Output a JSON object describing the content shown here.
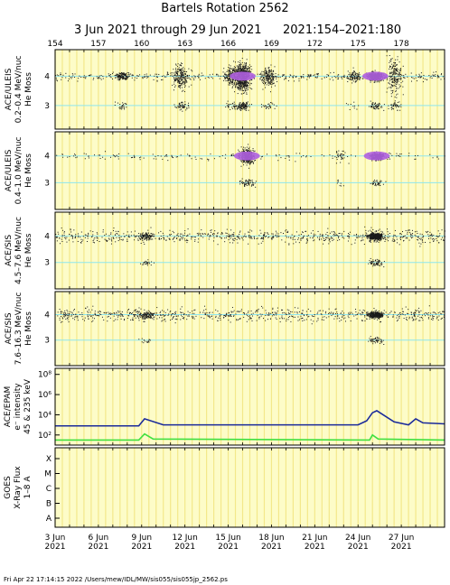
{
  "title": "Bartels Rotation 2562",
  "subtitle_dates": "3 Jun 2021 through 29 Jun 2021",
  "subtitle_doy": "2021:154–2021:180",
  "doy_ticks": [
    "154",
    "157",
    "160",
    "163",
    "166",
    "169",
    "172",
    "175",
    "178"
  ],
  "date_ticks": [
    {
      "day": "3 Jun",
      "year": "2021"
    },
    {
      "day": "6 Jun",
      "year": "2021"
    },
    {
      "day": "9 Jun",
      "year": "2021"
    },
    {
      "day": "12 Jun",
      "year": "2021"
    },
    {
      "day": "15 Jun",
      "year": "2021"
    },
    {
      "day": "18 Jun",
      "year": "2021"
    },
    {
      "day": "21 Jun",
      "year": "2021"
    },
    {
      "day": "24 Jun",
      "year": "2021"
    },
    {
      "day": "27 Jun",
      "year": "2021"
    }
  ],
  "footer": "Fri Apr 22 17:14:15 2022    /Users/mew/IDL/MW/sis055/sis055jp_2562.ps",
  "colors": {
    "panel_bg": "#fdfcc8",
    "stripe": "#f3e88a",
    "cyan_line": "#8ee6ee",
    "dots": "#1a1a1a",
    "dense": "#b060e0",
    "electron_high": "#1a2a9a",
    "electron_low": "#40e040"
  },
  "chart_data": [
    {
      "type": "scatter",
      "instrument": "ACE/ULEIS",
      "energy": "0.2–0.4 MeV/nuc",
      "ylabel": "He Moss",
      "yticks": [
        "3",
        "4"
      ],
      "ylim": [
        2.2,
        4.9
      ],
      "x_range_doy": [
        154,
        181
      ],
      "activity": [
        {
          "doy": 158.6,
          "spread": 0.25,
          "n": 160
        },
        {
          "doy": 162.7,
          "spread": 0.9,
          "n": 260
        },
        {
          "doy": 166.3,
          "spread": 0.7,
          "n": 260
        },
        {
          "doy": 167.0,
          "spread": 0.9,
          "n": 700,
          "dense": true
        },
        {
          "doy": 168.8,
          "spread": 0.7,
          "n": 200
        },
        {
          "doy": 174.6,
          "spread": 0.4,
          "n": 100
        },
        {
          "doy": 176.2,
          "spread": 0.3,
          "n": 420,
          "dense": true
        },
        {
          "doy": 177.5,
          "spread": 1.3,
          "n": 220
        }
      ]
    },
    {
      "type": "scatter",
      "instrument": "ACE/ULEIS",
      "energy": "0.4–1.0 MeV/nuc",
      "ylabel": "He Moss",
      "yticks": [
        "3",
        "4"
      ],
      "ylim": [
        2.0,
        4.9
      ],
      "x_range_doy": [
        154,
        181
      ],
      "activity": [
        {
          "doy": 167.3,
          "spread": 0.6,
          "n": 420,
          "dense": true
        },
        {
          "doy": 176.3,
          "spread": 0.25,
          "n": 300,
          "dense": true
        },
        {
          "doy": 173.8,
          "spread": 0.6,
          "n": 40
        }
      ]
    },
    {
      "type": "scatter",
      "instrument": "ACE/SIS",
      "energy": "4.5–7.6 MeV/nuc",
      "ylabel": "He Moss",
      "yticks": [
        "3",
        "4"
      ],
      "ylim": [
        2.0,
        4.9
      ],
      "x_range_doy": [
        154,
        181
      ],
      "activity": [
        {
          "doy": 160.3,
          "spread": 0.3,
          "n": 120
        },
        {
          "doy": 176.2,
          "spread": 0.25,
          "n": 520
        }
      ]
    },
    {
      "type": "scatter",
      "instrument": "ACE/SIS",
      "energy": "7.6–16.3 MeV/nuc",
      "ylabel": "He Moss",
      "yticks": [
        "3",
        "4"
      ],
      "ylim": [
        2.0,
        4.9
      ],
      "x_range_doy": [
        154,
        181
      ],
      "activity": [
        {
          "doy": 160.3,
          "spread": 0.3,
          "n": 120
        },
        {
          "doy": 176.2,
          "spread": 0.25,
          "n": 380
        }
      ]
    },
    {
      "type": "line",
      "instrument": "ACE/EPAM",
      "ylabel": "e⁻ intensity",
      "energy": "45 & 235 keV",
      "ylim_log10": [
        1,
        8.6
      ],
      "yticks": [
        "10²",
        "10⁴",
        "10⁶",
        "10⁸"
      ],
      "series": [
        {
          "name": "45 keV",
          "color": "#1a2a9a",
          "x": [
            154,
            159.8,
            160.2,
            161.5,
            175,
            175.6,
            176.0,
            176.3,
            177.5,
            178.5,
            179.0,
            179.5,
            181
          ],
          "log10_y": [
            2.9,
            2.9,
            3.6,
            3.0,
            3.0,
            3.4,
            4.2,
            4.4,
            3.3,
            3.0,
            3.6,
            3.2,
            3.1
          ]
        },
        {
          "name": "235 keV",
          "color": "#40e040",
          "x": [
            154,
            159.8,
            160.2,
            160.8,
            175.8,
            176.0,
            176.4,
            181
          ],
          "log10_y": [
            1.5,
            1.5,
            2.1,
            1.6,
            1.5,
            2.0,
            1.6,
            1.5
          ]
        }
      ]
    },
    {
      "type": "line",
      "instrument": "GOES",
      "ylabel": "X-Ray Flux",
      "energy": "1–8 A",
      "yticks": [
        "A",
        "B",
        "C",
        "M",
        "X"
      ],
      "series": []
    }
  ]
}
